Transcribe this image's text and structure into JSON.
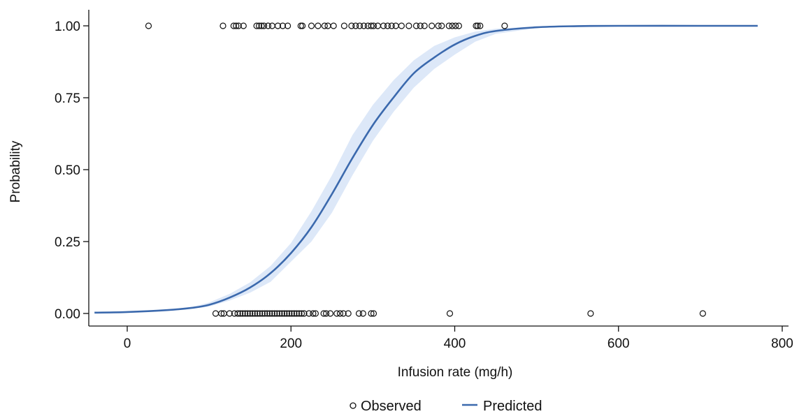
{
  "chart_data": {
    "type": "scatter",
    "xlabel": "Infusion rate (mg/h)",
    "ylabel": "Probability",
    "xlim": [
      -40,
      800
    ],
    "ylim": [
      0,
      1
    ],
    "x_ticks": [
      0,
      200,
      400,
      600,
      800
    ],
    "x_tick_labels": [
      "0",
      "200",
      "400",
      "600",
      "800"
    ],
    "y_ticks": [
      0,
      0.25,
      0.5,
      0.75,
      1.0
    ],
    "y_tick_labels": [
      "0.00",
      "0.25",
      "0.50",
      "0.75",
      "1.00"
    ],
    "grid": false,
    "legend_position": "bottom-center",
    "legend": [
      {
        "label": "Observed",
        "marker": "circle"
      },
      {
        "label": "Predicted",
        "marker": "line"
      }
    ],
    "colors": {
      "predicted_line": "#3b69ad",
      "confidence_band": "#dde8f8",
      "observed_marker": "#111111",
      "axis": "#111111"
    },
    "series": [
      {
        "name": "Observed",
        "kind": "scatter",
        "points": [
          [
            26,
            1
          ],
          [
            117,
            1
          ],
          [
            130,
            1
          ],
          [
            133,
            1
          ],
          [
            136,
            1
          ],
          [
            142,
            1
          ],
          [
            158,
            1
          ],
          [
            161,
            1
          ],
          [
            164,
            1
          ],
          [
            167,
            1
          ],
          [
            172,
            1
          ],
          [
            177,
            1
          ],
          [
            184,
            1
          ],
          [
            190,
            1
          ],
          [
            196,
            1
          ],
          [
            212,
            1
          ],
          [
            214,
            1
          ],
          [
            225,
            1
          ],
          [
            233,
            1
          ],
          [
            241,
            1
          ],
          [
            245,
            1
          ],
          [
            252,
            1
          ],
          [
            265,
            1
          ],
          [
            274,
            1
          ],
          [
            279,
            1
          ],
          [
            284,
            1
          ],
          [
            289,
            1
          ],
          [
            294,
            1
          ],
          [
            298,
            1
          ],
          [
            301,
            1
          ],
          [
            306,
            1
          ],
          [
            313,
            1
          ],
          [
            318,
            1
          ],
          [
            323,
            1
          ],
          [
            328,
            1
          ],
          [
            335,
            1
          ],
          [
            344,
            1
          ],
          [
            353,
            1
          ],
          [
            358,
            1
          ],
          [
            363,
            1
          ],
          [
            372,
            1
          ],
          [
            380,
            1
          ],
          [
            384,
            1
          ],
          [
            393,
            1
          ],
          [
            397,
            1
          ],
          [
            401,
            1
          ],
          [
            405,
            1
          ],
          [
            426,
            1
          ],
          [
            428,
            1
          ],
          [
            431,
            1
          ],
          [
            461,
            1
          ],
          [
            108,
            0
          ],
          [
            115,
            0
          ],
          [
            118,
            0
          ],
          [
            125,
            0
          ],
          [
            131,
            0
          ],
          [
            135,
            0
          ],
          [
            138,
            0
          ],
          [
            141,
            0
          ],
          [
            144,
            0
          ],
          [
            147,
            0
          ],
          [
            150,
            0
          ],
          [
            153,
            0
          ],
          [
            156,
            0
          ],
          [
            159,
            0
          ],
          [
            162,
            0
          ],
          [
            165,
            0
          ],
          [
            168,
            0
          ],
          [
            171,
            0
          ],
          [
            174,
            0
          ],
          [
            177,
            0
          ],
          [
            180,
            0
          ],
          [
            183,
            0
          ],
          [
            186,
            0
          ],
          [
            189,
            0
          ],
          [
            192,
            0
          ],
          [
            195,
            0
          ],
          [
            198,
            0
          ],
          [
            201,
            0
          ],
          [
            204,
            0
          ],
          [
            207,
            0
          ],
          [
            210,
            0
          ],
          [
            213,
            0
          ],
          [
            216,
            0
          ],
          [
            222,
            0
          ],
          [
            227,
            0
          ],
          [
            230,
            0
          ],
          [
            240,
            0
          ],
          [
            243,
            0
          ],
          [
            248,
            0
          ],
          [
            256,
            0
          ],
          [
            260,
            0
          ],
          [
            264,
            0
          ],
          [
            270,
            0
          ],
          [
            283,
            0
          ],
          [
            288,
            0
          ],
          [
            298,
            0
          ],
          [
            301,
            0
          ],
          [
            394,
            0
          ],
          [
            566,
            0
          ],
          [
            703,
            0
          ]
        ]
      },
      {
        "name": "Predicted",
        "kind": "line",
        "x": [
          -40,
          0,
          50,
          80,
          100,
          125,
          150,
          175,
          200,
          225,
          250,
          275,
          300,
          325,
          350,
          375,
          400,
          425,
          450,
          500,
          550,
          600,
          700,
          770
        ],
        "y": [
          0.003,
          0.005,
          0.012,
          0.02,
          0.03,
          0.055,
          0.09,
          0.14,
          0.21,
          0.3,
          0.415,
          0.54,
          0.655,
          0.75,
          0.835,
          0.89,
          0.935,
          0.965,
          0.982,
          0.995,
          0.999,
          1.0,
          1.0,
          1.0
        ],
        "lower": [
          0.003,
          0.005,
          0.011,
          0.017,
          0.024,
          0.045,
          0.072,
          0.11,
          0.18,
          0.25,
          0.35,
          0.48,
          0.6,
          0.7,
          0.785,
          0.85,
          0.9,
          0.945,
          0.972,
          0.992,
          0.998,
          1.0,
          1.0,
          1.0
        ],
        "upper": [
          0.003,
          0.005,
          0.013,
          0.023,
          0.038,
          0.068,
          0.108,
          0.165,
          0.245,
          0.355,
          0.48,
          0.62,
          0.725,
          0.81,
          0.88,
          0.93,
          0.96,
          0.98,
          0.99,
          0.998,
          0.999,
          1.0,
          1.0,
          1.0
        ]
      }
    ]
  }
}
